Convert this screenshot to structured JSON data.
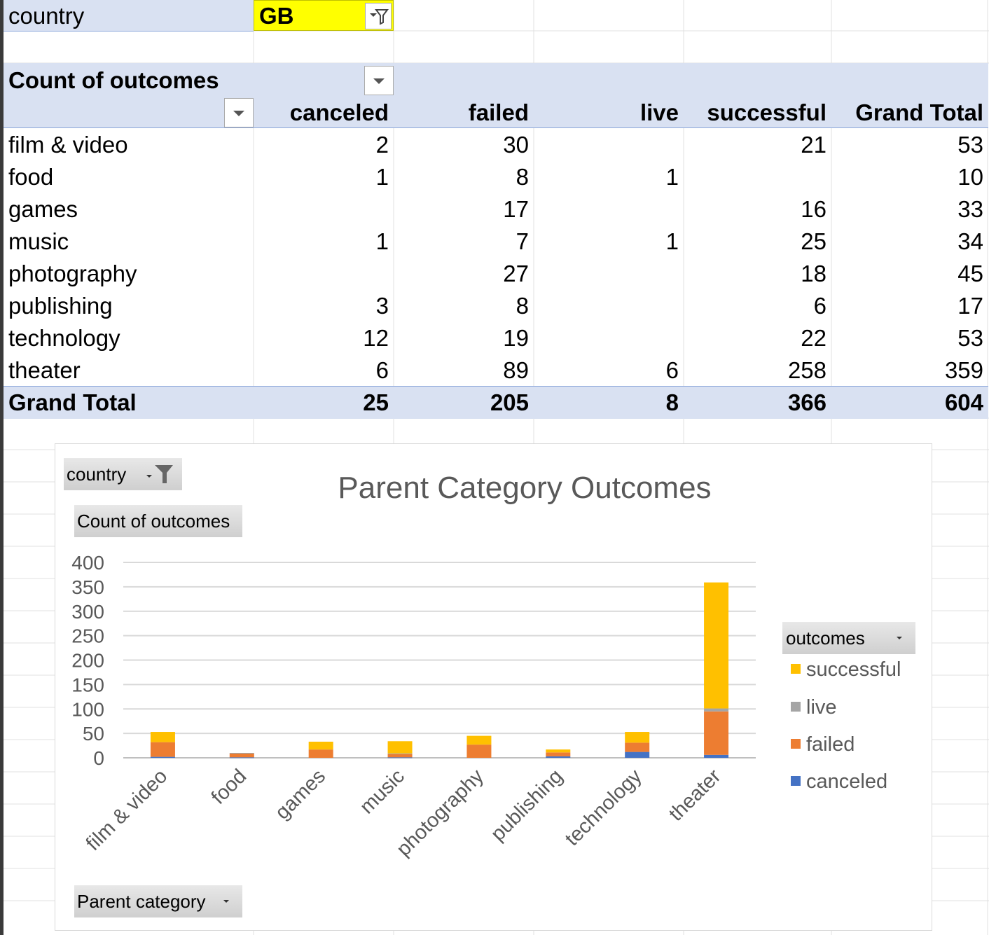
{
  "sheet": {
    "filter": {
      "label": "country",
      "value": "GB"
    },
    "pivot": {
      "title": "Count of outcomes",
      "columns": [
        "canceled",
        "failed",
        "live",
        "successful",
        "Grand Total"
      ],
      "rows": [
        {
          "label": "film & video",
          "values": [
            "2",
            "30",
            "",
            "21",
            "53"
          ]
        },
        {
          "label": "food",
          "values": [
            "1",
            "8",
            "1",
            "",
            "10"
          ]
        },
        {
          "label": "games",
          "values": [
            "",
            "17",
            "",
            "16",
            "33"
          ]
        },
        {
          "label": "music",
          "values": [
            "1",
            "7",
            "1",
            "25",
            "34"
          ]
        },
        {
          "label": "photography",
          "values": [
            "",
            "27",
            "",
            "18",
            "45"
          ]
        },
        {
          "label": "publishing",
          "values": [
            "3",
            "8",
            "",
            "6",
            "17"
          ]
        },
        {
          "label": "technology",
          "values": [
            "12",
            "19",
            "",
            "22",
            "53"
          ]
        },
        {
          "label": "theater",
          "values": [
            "6",
            "89",
            "6",
            "258",
            "359"
          ]
        }
      ],
      "grand_total": {
        "label": "Grand Total",
        "values": [
          "25",
          "205",
          "8",
          "366",
          "604"
        ]
      }
    }
  },
  "chart": {
    "filter_button": "country",
    "value_button": "Count of outcomes",
    "axis_button": "Parent category",
    "legend_button": "outcomes",
    "colors": {
      "canceled": "#4472c4",
      "failed": "#ed7d31",
      "live": "#a5a5a5",
      "successful": "#ffc000"
    }
  },
  "chart_data": {
    "type": "bar",
    "stacked": true,
    "title": "Parent Category Outcomes",
    "categories": [
      "film & video",
      "food",
      "games",
      "music",
      "photography",
      "publishing",
      "technology",
      "theater"
    ],
    "series": [
      {
        "name": "canceled",
        "values": [
          2,
          1,
          0,
          1,
          0,
          3,
          12,
          6
        ]
      },
      {
        "name": "failed",
        "values": [
          30,
          8,
          17,
          7,
          27,
          8,
          19,
          89
        ]
      },
      {
        "name": "live",
        "values": [
          0,
          1,
          0,
          1,
          0,
          0,
          0,
          6
        ]
      },
      {
        "name": "successful",
        "values": [
          21,
          0,
          16,
          25,
          18,
          6,
          22,
          258
        ]
      }
    ],
    "legend_order": [
      "successful",
      "live",
      "failed",
      "canceled"
    ],
    "yticks": [
      "0",
      "50",
      "100",
      "150",
      "200",
      "250",
      "300",
      "350",
      "400"
    ],
    "ylim": [
      0,
      400
    ],
    "grid": true,
    "legend_position": "right"
  }
}
